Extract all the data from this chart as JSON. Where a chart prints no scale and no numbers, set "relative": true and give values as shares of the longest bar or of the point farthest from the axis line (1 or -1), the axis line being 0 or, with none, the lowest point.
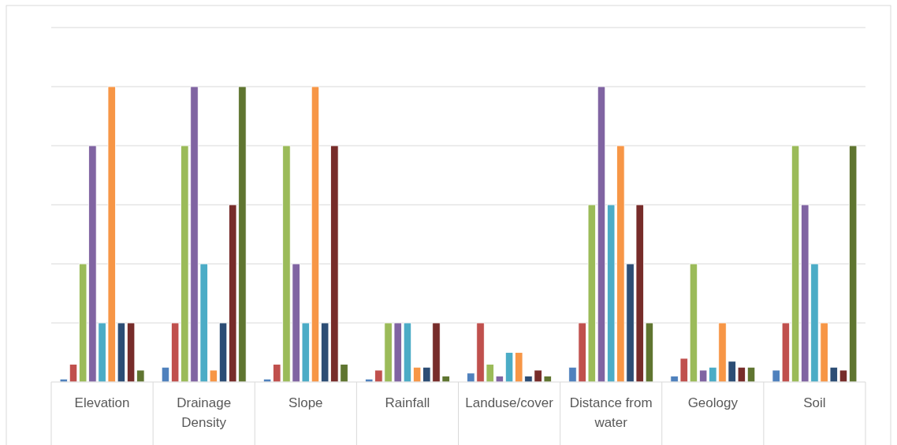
{
  "chart_data": {
    "type": "bar",
    "relative": true,
    "grid": true,
    "categories": [
      "Elevation",
      "Drainage Density",
      "Slope",
      "Rainfall",
      "Landuse/cover",
      "Distance from water",
      "Geology",
      "Soil"
    ],
    "series": [
      {
        "color": "#4f81bd",
        "values": [
          0.01,
          0.05,
          0.01,
          0.01,
          0.03,
          0.05,
          0.02,
          0.04
        ]
      },
      {
        "color": "#c0504d",
        "values": [
          0.06,
          0.2,
          0.06,
          0.04,
          0.2,
          0.2,
          0.08,
          0.2
        ]
      },
      {
        "color": "#9bbb59",
        "values": [
          0.4,
          0.8,
          0.8,
          0.2,
          0.06,
          0.6,
          0.4,
          0.8
        ]
      },
      {
        "color": "#8064a2",
        "values": [
          0.8,
          1.0,
          0.4,
          0.2,
          0.02,
          1.0,
          0.04,
          0.6
        ]
      },
      {
        "color": "#4bacc6",
        "values": [
          0.2,
          0.4,
          0.2,
          0.2,
          0.1,
          0.6,
          0.05,
          0.4
        ]
      },
      {
        "color": "#f79646",
        "values": [
          1.0,
          0.04,
          1.0,
          0.05,
          0.1,
          0.8,
          0.2,
          0.2
        ]
      },
      {
        "color": "#2c4d75",
        "values": [
          0.2,
          0.2,
          0.2,
          0.05,
          0.02,
          0.4,
          0.07,
          0.05
        ]
      },
      {
        "color": "#772c2a",
        "values": [
          0.2,
          0.6,
          0.8,
          0.2,
          0.04,
          0.6,
          0.05,
          0.04
        ]
      },
      {
        "color": "#5f7530",
        "values": [
          0.04,
          1.0,
          0.06,
          0.02,
          0.02,
          0.2,
          0.05,
          0.8
        ]
      }
    ]
  }
}
